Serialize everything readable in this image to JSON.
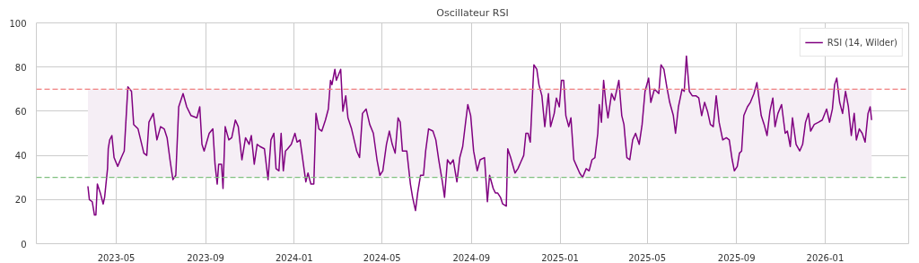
{
  "chart_data": {
    "type": "line",
    "title": "Oscillateur RSI",
    "x": [
      "2023-03-23",
      "2023-03-25",
      "2023-03-29",
      "2023-04-01",
      "2023-04-03",
      "2023-04-05",
      "2023-04-09",
      "2023-04-13",
      "2023-04-15",
      "2023-04-19",
      "2023-04-20",
      "2023-04-22",
      "2023-04-25",
      "2023-04-28",
      "2023-05-03",
      "2023-05-08",
      "2023-05-12",
      "2023-05-17",
      "2023-05-22",
      "2023-05-25",
      "2023-05-31",
      "2023-06-08",
      "2023-06-12",
      "2023-06-15",
      "2023-06-21",
      "2023-06-26",
      "2023-07-01",
      "2023-07-06",
      "2023-07-10",
      "2023-07-14",
      "2023-07-18",
      "2023-07-22",
      "2023-07-26",
      "2023-08-01",
      "2023-08-06",
      "2023-08-12",
      "2023-08-20",
      "2023-08-24",
      "2023-08-27",
      "2023-08-30",
      "2023-09-06",
      "2023-09-11",
      "2023-09-14",
      "2023-09-17",
      "2023-09-19",
      "2023-09-23",
      "2023-09-25",
      "2023-09-28",
      "2023-10-03",
      "2023-10-07",
      "2023-10-12",
      "2023-10-16",
      "2023-10-21",
      "2023-10-26",
      "2023-10-31",
      "2023-11-03",
      "2023-11-07",
      "2023-11-11",
      "2023-11-15",
      "2023-11-21",
      "2023-11-26",
      "2023-11-30",
      "2023-12-04",
      "2023-12-07",
      "2023-12-11",
      "2023-12-14",
      "2023-12-17",
      "2023-12-20",
      "2023-12-23",
      "2023-12-28",
      "2024-01-02",
      "2024-01-05",
      "2024-01-09",
      "2024-01-12",
      "2024-01-17",
      "2024-01-20",
      "2024-01-24",
      "2024-01-28",
      "2024-01-31",
      "2024-02-04",
      "2024-02-08",
      "2024-02-13",
      "2024-02-17",
      "2024-02-20",
      "2024-02-22",
      "2024-02-26",
      "2024-02-28",
      "2024-03-05",
      "2024-03-08",
      "2024-03-12",
      "2024-03-15",
      "2024-03-20",
      "2024-03-27",
      "2024-03-31",
      "2024-04-04",
      "2024-04-09",
      "2024-04-14",
      "2024-04-19",
      "2024-04-24",
      "2024-04-28",
      "2024-05-02",
      "2024-05-07",
      "2024-05-11",
      "2024-05-15",
      "2024-05-19",
      "2024-05-23",
      "2024-05-26",
      "2024-05-29",
      "2024-06-04",
      "2024-06-09",
      "2024-06-12",
      "2024-06-16",
      "2024-06-19",
      "2024-06-23",
      "2024-06-27",
      "2024-06-30",
      "2024-07-04",
      "2024-07-10",
      "2024-07-14",
      "2024-07-18",
      "2024-07-23",
      "2024-07-26",
      "2024-07-30",
      "2024-08-03",
      "2024-08-07",
      "2024-08-12",
      "2024-08-16",
      "2024-08-20",
      "2024-08-24",
      "2024-08-27",
      "2024-08-31",
      "2024-09-04",
      "2024-09-09",
      "2024-09-13",
      "2024-09-19",
      "2024-09-23",
      "2024-09-26",
      "2024-10-01",
      "2024-10-04",
      "2024-10-07",
      "2024-10-11",
      "2024-10-14",
      "2024-10-19",
      "2024-10-21",
      "2024-10-25",
      "2024-10-31",
      "2024-11-04",
      "2024-11-08",
      "2024-11-12",
      "2024-11-15",
      "2024-11-18",
      "2024-11-21",
      "2024-11-26",
      "2024-11-30",
      "2024-12-03",
      "2024-12-07",
      "2024-12-11",
      "2024-12-16",
      "2024-12-19",
      "2024-12-24",
      "2024-12-27",
      "2024-12-31",
      "2025-01-03",
      "2025-01-06",
      "2025-01-09",
      "2025-01-13",
      "2025-01-16",
      "2025-01-20",
      "2025-01-24",
      "2025-01-28",
      "2025-02-01",
      "2025-02-06",
      "2025-02-10",
      "2025-02-14",
      "2025-02-18",
      "2025-02-22",
      "2025-02-24",
      "2025-02-27",
      "2025-03-02",
      "2025-03-05",
      "2025-03-08",
      "2025-03-13",
      "2025-03-17",
      "2025-03-23",
      "2025-03-27",
      "2025-03-30",
      "2025-04-03",
      "2025-04-07",
      "2025-04-11",
      "2025-04-15",
      "2025-04-20",
      "2025-04-24",
      "2025-04-28",
      "2025-05-03",
      "2025-05-06",
      "2025-05-11",
      "2025-05-17",
      "2025-05-20",
      "2025-05-24",
      "2025-05-28",
      "2025-06-01",
      "2025-06-06",
      "2025-06-09",
      "2025-06-13",
      "2025-06-18",
      "2025-06-21",
      "2025-06-24",
      "2025-06-28",
      "2025-07-02",
      "2025-07-07",
      "2025-07-11",
      "2025-07-15",
      "2025-07-19",
      "2025-07-23",
      "2025-07-27",
      "2025-07-31",
      "2025-08-04",
      "2025-08-08",
      "2025-08-13",
      "2025-08-18",
      "2025-08-22",
      "2025-08-26",
      "2025-08-29",
      "2025-09-02",
      "2025-09-05",
      "2025-09-08",
      "2025-09-11",
      "2025-09-16",
      "2025-09-20",
      "2025-09-25",
      "2025-09-29",
      "2025-10-05",
      "2025-10-09",
      "2025-10-13",
      "2025-10-17",
      "2025-10-21",
      "2025-10-24",
      "2025-10-28",
      "2025-11-02",
      "2025-11-07",
      "2025-11-10",
      "2025-11-14",
      "2025-11-17",
      "2025-11-22",
      "2025-11-27",
      "2025-12-01",
      "2025-12-05",
      "2025-12-09",
      "2025-12-12",
      "2025-12-17",
      "2025-12-23",
      "2025-12-28",
      "2026-01-03",
      "2026-01-07",
      "2026-01-11",
      "2026-01-14",
      "2026-01-17",
      "2026-01-21",
      "2026-01-25",
      "2026-01-29",
      "2026-02-02",
      "2026-02-06",
      "2026-02-10",
      "2026-02-13",
      "2026-02-17",
      "2026-02-21",
      "2026-02-25",
      "2026-03-01",
      "2026-03-04",
      "2026-03-06"
    ],
    "series": [
      {
        "name": "RSI (14, Wilder)",
        "color": "#800080",
        "values": [
          26,
          20,
          19,
          13,
          13,
          27,
          23,
          18,
          21,
          34,
          43,
          47,
          49,
          39,
          35,
          39,
          42,
          71,
          69,
          54,
          52,
          41,
          40,
          55,
          59,
          47,
          53,
          52,
          48,
          38,
          29,
          31,
          62,
          68,
          62,
          58,
          57,
          62,
          45,
          42,
          50,
          52,
          36,
          27,
          36,
          36,
          25,
          53,
          47,
          48,
          56,
          53,
          38,
          48,
          45,
          49,
          36,
          45,
          44,
          43,
          29,
          47,
          50,
          34,
          33,
          50,
          33,
          42,
          43,
          45,
          50,
          46,
          47,
          40,
          28,
          32,
          27,
          27,
          59,
          52,
          51,
          56,
          61,
          74,
          72,
          79,
          74,
          79,
          60,
          67,
          57,
          52,
          42,
          39,
          59,
          61,
          54,
          50,
          38,
          31,
          33,
          45,
          51,
          45,
          41,
          57,
          55,
          42,
          42,
          27,
          21,
          15,
          23,
          31,
          31,
          42,
          52,
          51,
          47,
          38,
          28,
          21,
          38,
          36,
          38,
          28,
          39,
          44,
          55,
          63,
          58,
          42,
          33,
          38,
          39,
          19,
          31,
          25,
          23,
          23,
          21,
          18,
          17,
          43,
          39,
          32,
          34,
          37,
          40,
          50,
          50,
          46,
          81,
          79,
          72,
          67,
          53,
          68,
          53,
          59,
          66,
          62,
          74,
          74,
          58,
          53,
          57,
          38,
          35,
          32,
          30,
          34,
          33,
          38,
          39,
          50,
          63,
          55,
          74,
          64,
          57,
          68,
          65,
          74,
          58,
          54,
          39,
          38,
          47,
          50,
          45,
          54,
          69,
          75,
          64,
          70,
          68,
          81,
          79,
          71,
          64,
          58,
          50,
          62,
          70,
          69,
          85,
          69,
          67,
          67,
          66,
          58,
          64,
          60,
          54,
          53,
          67,
          55,
          47,
          48,
          47,
          38,
          33,
          35,
          41,
          42,
          58,
          62,
          64,
          68,
          73,
          58,
          54,
          49,
          60,
          66,
          53,
          59,
          63,
          50,
          51,
          44,
          57,
          45,
          42,
          45,
          55,
          59,
          51,
          54,
          55,
          56,
          61,
          55,
          61,
          72,
          75,
          64,
          59,
          69,
          62,
          49,
          59,
          47,
          52,
          50,
          46,
          59,
          62,
          56
        ]
      }
    ],
    "xlim": [
      "2023-01-11",
      "2026-04-26"
    ],
    "xticks": [
      "2023-05",
      "2023-09",
      "2024-01",
      "2024-05",
      "2024-09",
      "2025-01",
      "2025-05",
      "2025-09",
      "2026-01"
    ],
    "ylim": [
      0,
      100
    ],
    "yticks": [
      0,
      20,
      40,
      60,
      80,
      100
    ],
    "ref_lines": [
      {
        "axis": "y",
        "value": 70,
        "color": "#f08080",
        "line_style": "dashed"
      },
      {
        "axis": "y",
        "value": 30,
        "color": "#80c080",
        "line_style": "dashed"
      }
    ],
    "bands": [
      {
        "axis": "y",
        "from": 30,
        "to": 70,
        "color": "#f5eef5"
      }
    ],
    "grid": true,
    "legend": "top right",
    "marker": "none",
    "line_style": "solid"
  }
}
